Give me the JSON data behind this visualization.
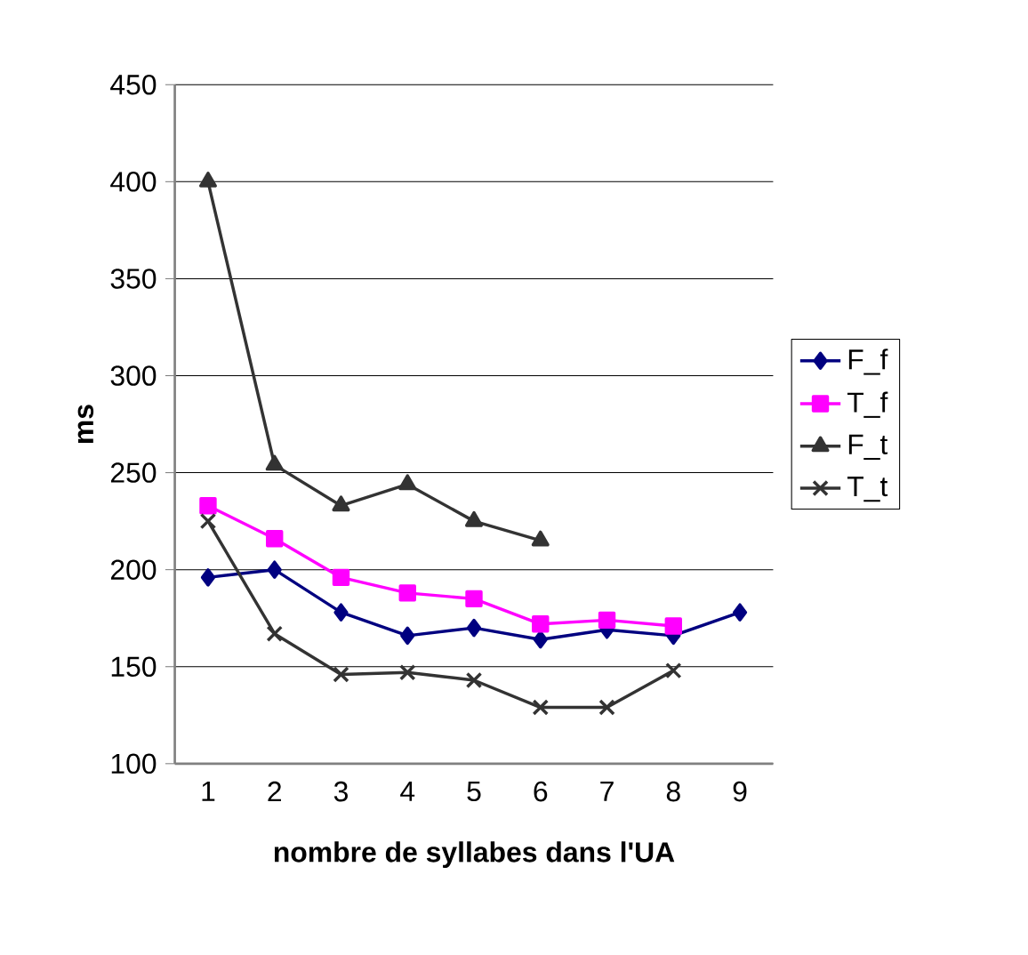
{
  "chart_data": {
    "type": "line",
    "xlabel": "nombre de syllabes dans l'UA",
    "ylabel": "ms",
    "categories": [
      "1",
      "2",
      "3",
      "4",
      "5",
      "6",
      "7",
      "8",
      "9"
    ],
    "ylim": [
      100,
      450
    ],
    "yticks": [
      100,
      150,
      200,
      250,
      300,
      350,
      400,
      450
    ],
    "grid": "y",
    "legend": "right",
    "series": [
      {
        "name": "F_f",
        "color": "#000080",
        "marker": "diamond",
        "values": [
          196,
          200,
          178,
          166,
          170,
          164,
          169,
          166,
          178
        ]
      },
      {
        "name": "T_f",
        "color": "#ff00ff",
        "marker": "square",
        "values": [
          233,
          216,
          196,
          188,
          185,
          172,
          174,
          171,
          null
        ]
      },
      {
        "name": "F_t",
        "color": "#333333",
        "marker": "triangle",
        "values": [
          400,
          254,
          233,
          244,
          225,
          215,
          null,
          null,
          null
        ]
      },
      {
        "name": "T_t",
        "color": "#333333",
        "marker": "cross",
        "values": [
          225,
          167,
          146,
          147,
          143,
          129,
          129,
          148,
          null
        ]
      }
    ]
  }
}
